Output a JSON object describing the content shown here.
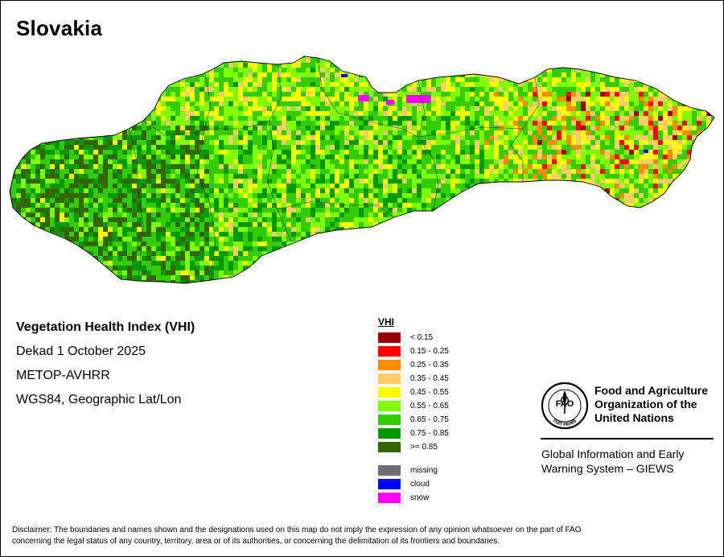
{
  "map_title": "Slovakia",
  "info": {
    "index_name": "Vegetation Health Index (VHI)",
    "period": "Dekad 1 October 2025",
    "sensor": "METOP-AVHRR",
    "projection": "WGS84, Geographic Lat/Lon"
  },
  "legend": {
    "title": "VHI",
    "classes": [
      {
        "label": "< 0.15",
        "color": "#990000"
      },
      {
        "label": "0.15 - 0.25",
        "color": "#ff0000"
      },
      {
        "label": "0.25 - 0.35",
        "color": "#ff8c00"
      },
      {
        "label": "0.35 - 0.45",
        "color": "#ffcc66"
      },
      {
        "label": "0.45 - 0.55",
        "color": "#ffff00"
      },
      {
        "label": "0.55 - 0.65",
        "color": "#80ff00"
      },
      {
        "label": "0.65 - 0.75",
        "color": "#33cc00"
      },
      {
        "label": "0.75 - 0.85",
        "color": "#009900"
      },
      {
        "label": ">= 0.85",
        "color": "#336600"
      }
    ],
    "special": [
      {
        "label": "missing",
        "color": "#707070"
      },
      {
        "label": "cloud",
        "color": "#0000ff"
      },
      {
        "label": "snow",
        "color": "#ff00ff"
      }
    ]
  },
  "organization": {
    "name_lines": [
      "Food and Agriculture",
      "Organization of the",
      "United Nations"
    ],
    "logo_letters": "FAO",
    "logo_motto": "FIAT PANIS",
    "system_lines": [
      "Global Information and Early",
      "Warning System – GIEWS"
    ]
  },
  "disclaimer_lines": [
    "Disclaimer: The boundaries and names shown and the designations used on this map do not imply the expression of any opinion whatsoever on the part of FAO",
    "concerning the legal status of any country, territory, area or of its authorities, or concerning the delimitation of its frontiers and boundaries."
  ]
}
